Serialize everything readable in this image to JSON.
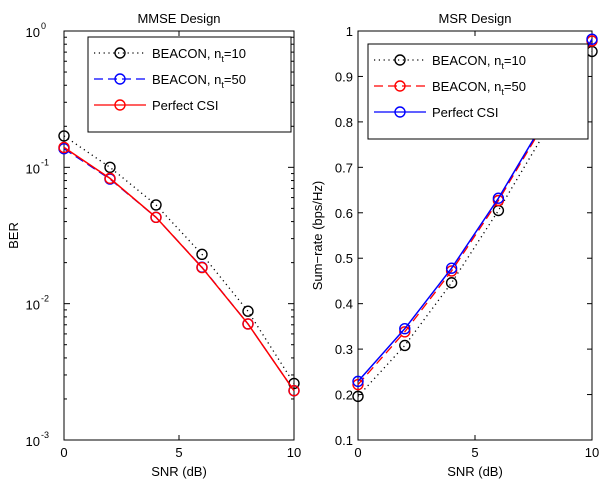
{
  "chart_data": [
    {
      "type": "line",
      "title": "MMSE Design",
      "xlabel": "SNR (dB)",
      "ylabel": "BER",
      "xlim": [
        0,
        10
      ],
      "ylim": [
        0.001,
        1
      ],
      "yscale": "log",
      "x_ticks": [
        "0",
        "5",
        "10"
      ],
      "y_ticks": [
        {
          "base": "10",
          "exp": "0"
        },
        {
          "base": "10",
          "exp": "-1"
        },
        {
          "base": "10",
          "exp": "-2"
        },
        {
          "base": "10",
          "exp": "-3"
        }
      ],
      "grid": false,
      "legend_position": "top-right",
      "x": [
        0,
        2,
        4,
        6,
        8,
        10
      ],
      "series": [
        {
          "name": "BEACON, n",
          "name_sub": "t",
          "name_suffix": "=10",
          "color": "#000000",
          "line": "dotted",
          "marker": "circle",
          "values": [
            0.17,
            0.1,
            0.053,
            0.023,
            0.0088,
            0.0026
          ]
        },
        {
          "name": "BEACON, n",
          "name_sub": "t",
          "name_suffix": "=50",
          "color": "#0000ff",
          "line": "dashed",
          "marker": "circle",
          "values": [
            0.137,
            0.082,
            0.043,
            0.0185,
            0.0071,
            0.0023
          ]
        },
        {
          "name": "Perfect CSI",
          "color": "#ff0000",
          "line": "solid",
          "marker": "circle",
          "values": [
            0.14,
            0.083,
            0.043,
            0.0184,
            0.0071,
            0.0023
          ]
        }
      ]
    },
    {
      "type": "line",
      "title": "MSR Design",
      "xlabel": "SNR (dB)",
      "ylabel": "Sum−rate (bps/Hz)",
      "xlim": [
        0,
        10
      ],
      "ylim": [
        0.1,
        1
      ],
      "yscale": "linear",
      "x_ticks": [
        "0",
        "5",
        "10"
      ],
      "y_ticks": [
        "0.1",
        "0.2",
        "0.3",
        "0.4",
        "0.5",
        "0.6",
        "0.7",
        "0.8",
        "0.9",
        "1"
      ],
      "grid": false,
      "legend_position": "top-right",
      "x": [
        0,
        2,
        4,
        6,
        8,
        10
      ],
      "series": [
        {
          "name": "BEACON, n",
          "name_sub": "t",
          "name_suffix": "=10",
          "color": "#000000",
          "line": "dotted",
          "marker": "circle",
          "values": [
            0.196,
            0.308,
            0.446,
            0.605,
            0.778,
            0.955
          ]
        },
        {
          "name": "BEACON, n",
          "name_sub": "t",
          "name_suffix": "=50",
          "color": "#ff0000",
          "line": "dashed",
          "marker": "circle",
          "values": [
            0.222,
            0.338,
            0.472,
            0.627,
            0.8,
            0.978
          ]
        },
        {
          "name": "Perfect CSI",
          "color": "#0000ff",
          "line": "solid",
          "marker": "circle",
          "values": [
            0.229,
            0.345,
            0.478,
            0.632,
            0.805,
            0.982
          ]
        }
      ]
    }
  ]
}
